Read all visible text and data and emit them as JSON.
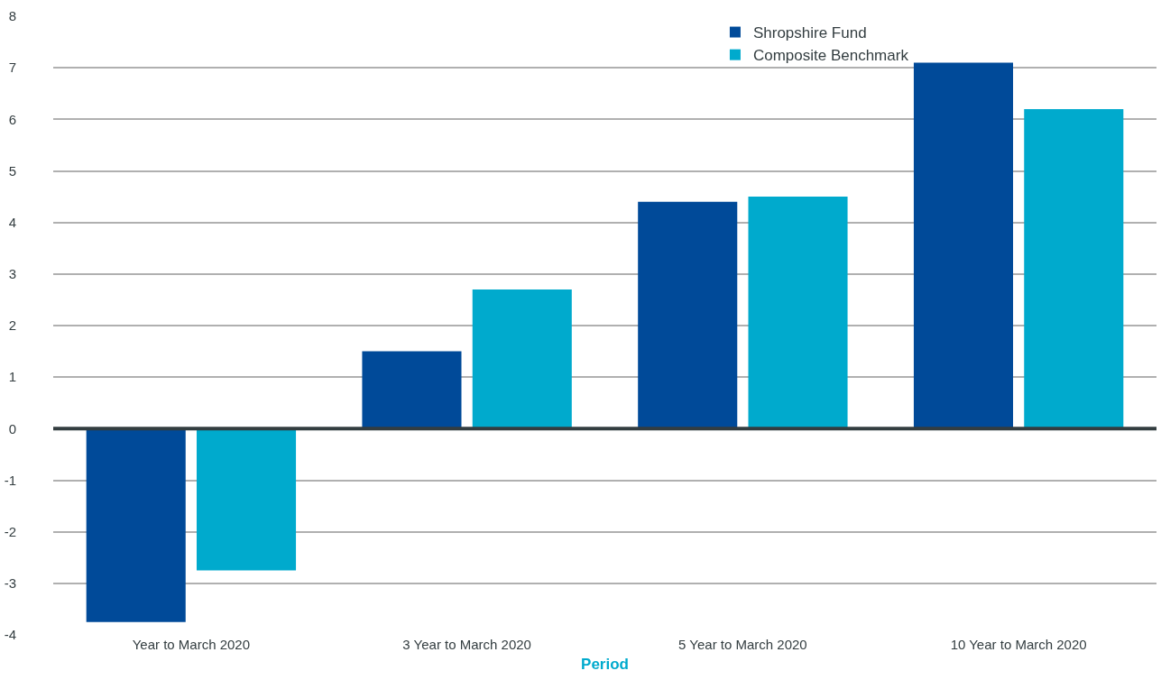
{
  "chart_data": {
    "type": "bar",
    "xlabel": "Period",
    "categories": [
      "Year to March 2020",
      "3 Year to March 2020",
      "5 Year to March 2020",
      "10 Year to March 2020"
    ],
    "series": [
      {
        "name": "Shropshire Fund",
        "color": "#004a99",
        "values": [
          -3.75,
          1.5,
          4.4,
          7.1
        ]
      },
      {
        "name": "Composite Benchmark",
        "color": "#00aacd",
        "values": [
          -2.75,
          2.7,
          4.5,
          6.2
        ]
      }
    ],
    "ylim": [
      -4,
      8
    ],
    "yticks": [
      -4,
      -3,
      -2,
      -1,
      0,
      1,
      2,
      3,
      4,
      5,
      6,
      7,
      8
    ],
    "ref_lines": [
      {
        "axis": "y",
        "value": 0,
        "color": "#333d40"
      }
    ],
    "grid": "y",
    "legend": "top right"
  }
}
